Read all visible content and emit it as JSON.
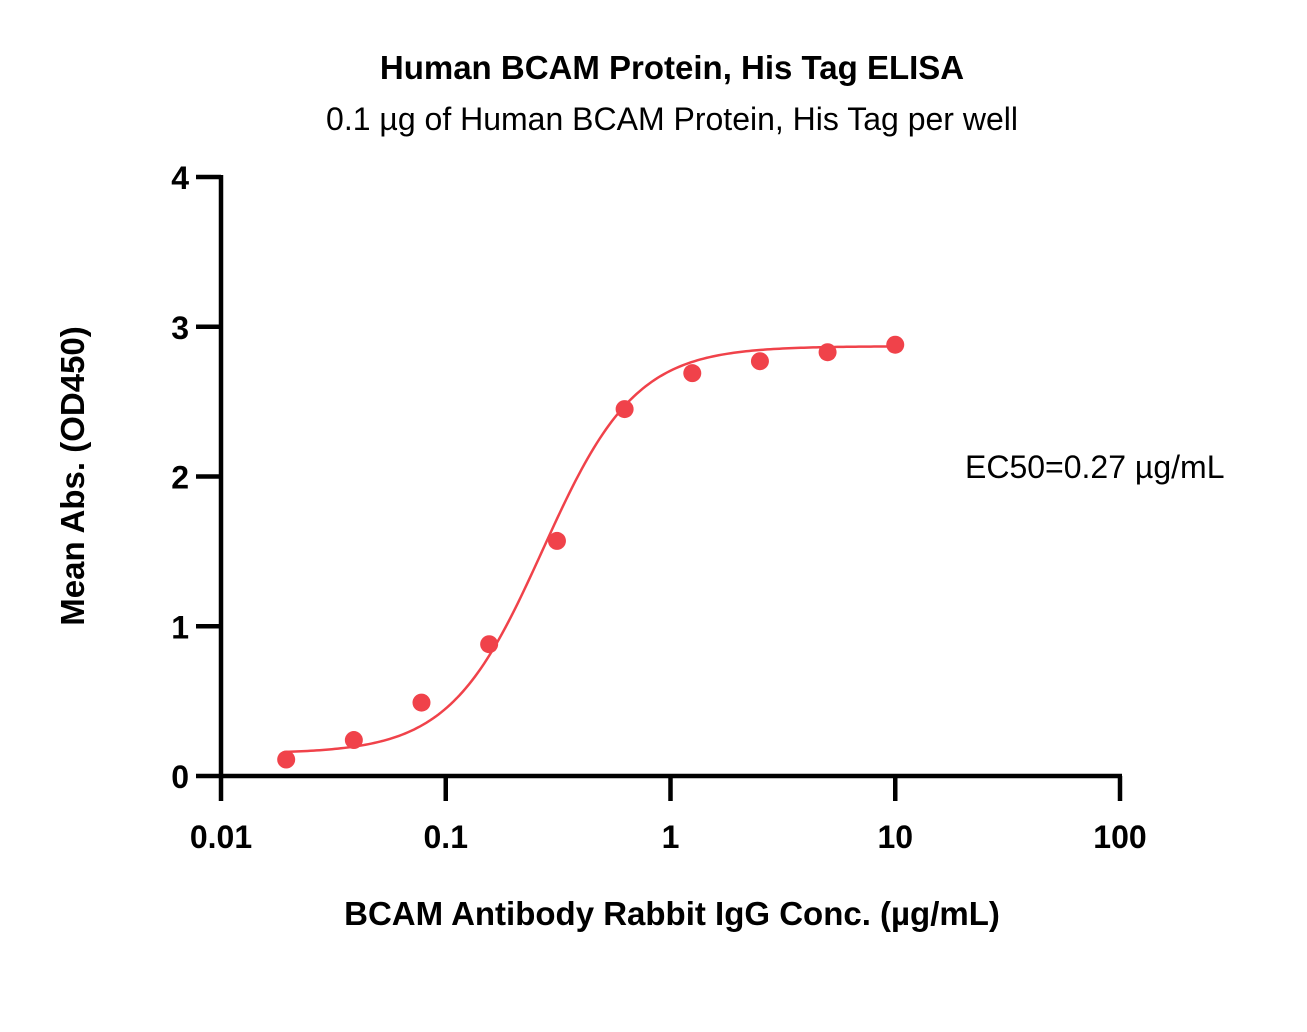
{
  "chart_data": {
    "type": "scatter",
    "title": "Human BCAM Protein, His Tag ELISA",
    "subtitle": "0.1 µg of Human BCAM Protein, His Tag per well",
    "xlabel": "BCAM Antibody Rabbit IgG Conc. (µg/mL)",
    "ylabel": "Mean Abs. (OD450)",
    "x_scale": "log",
    "xlim": [
      0.01,
      100
    ],
    "ylim": [
      0,
      4
    ],
    "x_ticks": [
      0.01,
      0.1,
      1,
      10,
      100
    ],
    "x_tick_labels": [
      "0.01",
      "0.1",
      "1",
      "10",
      "100"
    ],
    "y_ticks": [
      0,
      1,
      2,
      3,
      4
    ],
    "y_tick_labels": [
      "0",
      "1",
      "2",
      "3",
      "4"
    ],
    "grid": false,
    "annotation": "EC50=0.27 µg/mL",
    "color": "#f0424a",
    "series": [
      {
        "x": [
          0.0195,
          0.039,
          0.078,
          0.156,
          0.3125,
          0.625,
          1.25,
          2.5,
          5,
          10
        ],
        "y": [
          0.11,
          0.24,
          0.49,
          0.88,
          1.57,
          2.45,
          2.69,
          2.77,
          2.83,
          2.88
        ]
      }
    ],
    "fit": {
      "bottom": 0.15,
      "top": 2.87,
      "ec50": 0.27,
      "hill": 2.1
    }
  }
}
